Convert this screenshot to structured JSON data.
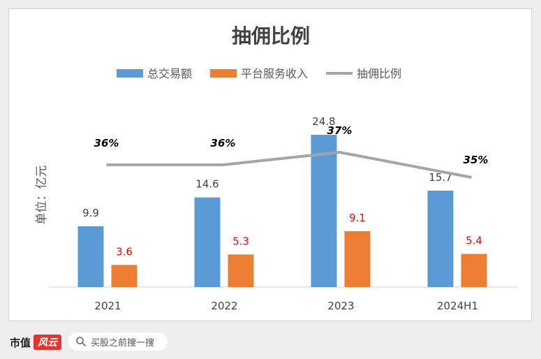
{
  "chart_data": {
    "type": "bar",
    "title": "抽佣比例",
    "categories": [
      "2021",
      "2022",
      "2023",
      "2024H1"
    ],
    "ylabel": "单位：亿元",
    "series": [
      {
        "name": "总交易额",
        "type": "bar",
        "color": "#5b9bd5",
        "values": [
          9.9,
          14.6,
          24.8,
          15.7
        ],
        "labels": [
          "9.9",
          "14.6",
          "24.8",
          "15.7"
        ],
        "label_color": "#404040"
      },
      {
        "name": "平台服务收入",
        "type": "bar",
        "color": "#ed7d31",
        "values": [
          3.6,
          5.3,
          9.1,
          5.4
        ],
        "labels": [
          "3.6",
          "5.3",
          "9.1",
          "5.4"
        ],
        "label_color": "#ff0000"
      },
      {
        "name": "抽佣比例",
        "type": "line",
        "color": "#a5a5a5",
        "values": [
          36,
          36,
          37,
          35
        ],
        "labels": [
          "36%",
          "36%",
          "37%",
          "35%"
        ],
        "label_color": "#000000"
      }
    ],
    "legend": "top",
    "grid": false
  },
  "footer": {
    "brand": "市值",
    "logo_text": "风云",
    "search_placeholder": "买股之前搜一搜"
  }
}
